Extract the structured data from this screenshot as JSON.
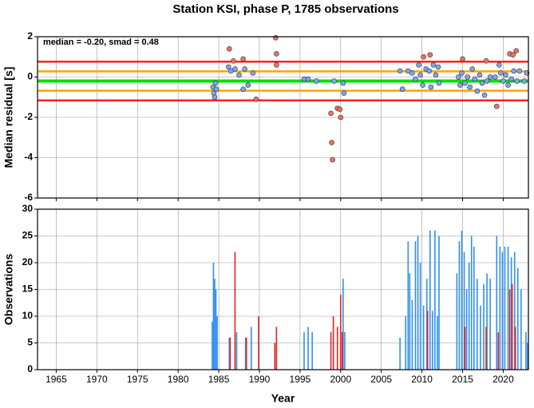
{
  "title": "Station KSI, phase P, 1785 observations",
  "chart_data": [
    {
      "type": "scatter",
      "annotation": "median = -0.20, smad = 0.48",
      "ylabel": "Median residual [s]",
      "xlim": [
        1962.7,
        2023.1
      ],
      "xticks": [
        1965,
        1970,
        1975,
        1980,
        1985,
        1990,
        1995,
        2000,
        2005,
        2010,
        2015,
        2020
      ],
      "ylim": [
        -6,
        2
      ],
      "yticks": [
        2,
        0,
        -2,
        -4,
        -6
      ],
      "grid": true,
      "hlines": [
        {
          "value": 0.76,
          "color": "#ff2020"
        },
        {
          "value": -1.16,
          "color": "#ff2020"
        },
        {
          "value": 0.28,
          "color": "#ffa500"
        },
        {
          "value": -0.68,
          "color": "#ffa500"
        },
        {
          "value": -0.2,
          "color": "#00e000"
        }
      ],
      "series": [
        {
          "color": "#7aa6f0",
          "x": [
            1984.3,
            1984.4,
            1984.5,
            1984.6,
            1984.7,
            1986.2,
            1986.5,
            1987,
            1987.5,
            1988,
            1988.2,
            1988.6,
            1989.2,
            1995.5,
            1996,
            1997,
            1999.2,
            2000.3,
            2000.4,
            2007.3,
            2007.6,
            2008.3,
            2008.8,
            2009.2,
            2009.6,
            2009.8,
            2010.1,
            2010.5,
            2010.9,
            2011.1,
            2011.4,
            2011.7,
            2012,
            2012.1,
            2014.5,
            2014.7,
            2014.9,
            2015.3,
            2015.6,
            2015.9,
            2016.2,
            2016.5,
            2016.8,
            2017.1,
            2017.4,
            2017.7,
            2018,
            2018.4,
            2019,
            2019.5,
            2019.7,
            2020,
            2020.3,
            2020.6,
            2021,
            2021.3,
            2021.7,
            2022,
            2022.6,
            2022.9
          ],
          "values": [
            -0.5,
            -0.8,
            -1.0,
            -0.3,
            -0.6,
            0.5,
            0.3,
            0.4,
            0.1,
            -0.6,
            0.4,
            -0.4,
            0.2,
            -0.1,
            -0.1,
            -0.2,
            -0.2,
            -0.3,
            -0.8,
            0.3,
            -0.6,
            0.3,
            0.2,
            -0.1,
            0.6,
            0.1,
            -0.4,
            0.4,
            0.3,
            -0.5,
            0.6,
            0.1,
            0.5,
            -0.3,
            0.0,
            -0.4,
            0.2,
            -0.3,
            0.0,
            -0.5,
            0.4,
            -0.1,
            -0.7,
            0.1,
            -0.3,
            -0.9,
            -0.2,
            0.0,
            0.0,
            0.6,
            0.2,
            -0.2,
            0.1,
            -0.4,
            -0.1,
            0.3,
            -0.2,
            0.3,
            -0.2,
            0.2
          ]
        },
        {
          "color": "#f07060",
          "x": [
            1986.3,
            1986.8,
            1988,
            1989.6,
            1992,
            1992.1,
            1992.1,
            1998.8,
            1998.9,
            1999,
            1999.6,
            1999.9,
            2000,
            2010.2,
            2011,
            2015,
            2017.9,
            2019.2,
            2020.8,
            2021.2,
            2021.6
          ],
          "values": [
            1.4,
            0.8,
            0.9,
            -1.1,
            1.95,
            1.15,
            0.6,
            -1.8,
            -3.25,
            -4.1,
            -1.55,
            -1.6,
            -2.0,
            1.0,
            1.1,
            0.9,
            0.8,
            -1.45,
            1.15,
            1.1,
            1.3
          ]
        }
      ]
    },
    {
      "type": "bar",
      "xlabel": "Year",
      "ylabel": "Observations",
      "xlim": [
        1962.7,
        2023.1
      ],
      "xticks": [
        1965,
        1970,
        1975,
        1980,
        1985,
        1990,
        1995,
        2000,
        2005,
        2010,
        2015,
        2020
      ],
      "ylim": [
        0,
        30
      ],
      "yticks": [
        0,
        5,
        10,
        15,
        20,
        25,
        30
      ],
      "grid": true,
      "series": [
        {
          "color": "#2f8fef",
          "x": [
            1984.2,
            1984.35,
            1984.5,
            1984.65,
            1984.8,
            1986.3,
            1987.2,
            1988.3,
            1989,
            1995.5,
            1996,
            1996.5,
            2000.3,
            2000.5,
            2007.3,
            2008,
            2008.3,
            2008.5,
            2008.8,
            2009.2,
            2009.5,
            2009.8,
            2010.2,
            2010.6,
            2011,
            2011.3,
            2011.6,
            2011.9,
            2012.1,
            2014.3,
            2014.6,
            2014.9,
            2015.2,
            2015.5,
            2015.8,
            2016.1,
            2016.4,
            2016.8,
            2017.2,
            2017.6,
            2018,
            2018.4,
            2019.2,
            2019.6,
            2019.9,
            2020.2,
            2020.6,
            2021,
            2021.4,
            2021.8,
            2022.2,
            2022.8,
            2023
          ],
          "values": [
            9,
            20,
            17,
            15,
            10,
            6,
            7,
            6,
            8,
            7,
            8,
            7,
            17,
            7,
            6,
            10,
            24,
            18,
            13,
            24,
            25,
            20,
            12,
            17,
            26,
            11,
            26,
            10,
            25,
            18,
            24,
            26,
            22,
            15,
            20,
            25,
            23,
            17,
            12,
            16,
            18,
            17,
            25,
            23,
            22,
            23,
            23,
            21,
            22,
            19,
            15,
            7,
            5
          ]
        },
        {
          "color": "#e02020",
          "x": [
            1986.4,
            1987,
            1988.4,
            1989.9,
            1991.9,
            1992.1,
            1998.8,
            1999.1,
            1999.6,
            2000,
            2000.2,
            2010.7,
            2015.3,
            2017.9,
            2019.4,
            2020.8,
            2021.1,
            2021.5
          ],
          "values": [
            6,
            22,
            6,
            10,
            5,
            8,
            7,
            10,
            8,
            14,
            7,
            11,
            8,
            8,
            7,
            15,
            16,
            8
          ]
        }
      ]
    }
  ]
}
